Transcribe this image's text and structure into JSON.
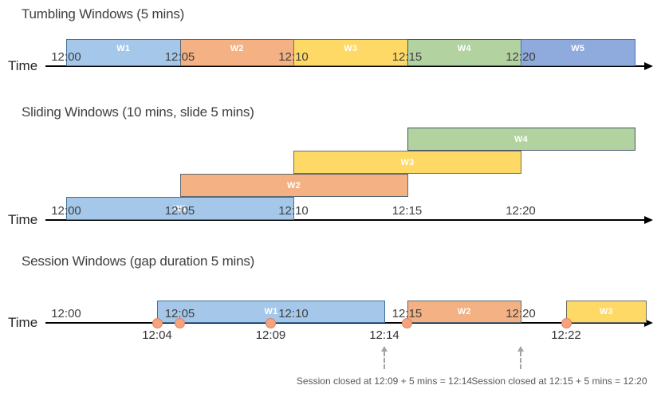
{
  "colors": {
    "blue": {
      "fill": "#A5C8EA",
      "border": "#41719C"
    },
    "orange": {
      "fill": "#F4B183",
      "border": "#5B6770"
    },
    "yellow": {
      "fill": "#FFD966",
      "border": "#6E7060"
    },
    "green": {
      "fill": "#B2D3A0",
      "border": "#44546A"
    },
    "periwinkle": {
      "fill": "#8FAADC",
      "border": "#4472C4"
    },
    "axis": "#000000",
    "dot_fill": "#F4A57F",
    "dot_border": "#E0825C",
    "tick_text": "#3F3F3F",
    "annotation_text": "#595959",
    "annotation_arrow": "#A3A3A3"
  },
  "sections": [
    {
      "title": "Tumbling Windows (5 mins)",
      "time_label": "Time",
      "ticks": [
        {
          "label": "12:00",
          "min": 0
        },
        {
          "label": "12:05",
          "min": 5
        },
        {
          "label": "12:10",
          "min": 10
        },
        {
          "label": "12:15",
          "min": 15
        },
        {
          "label": "12:20",
          "min": 20
        }
      ],
      "windows": [
        {
          "label": "W1",
          "start_min": 0,
          "end_min": 5,
          "color": "blue"
        },
        {
          "label": "W2",
          "start_min": 5,
          "end_min": 10,
          "color": "orange"
        },
        {
          "label": "W3",
          "start_min": 10,
          "end_min": 15,
          "color": "yellow"
        },
        {
          "label": "W4",
          "start_min": 15,
          "end_min": 20,
          "color": "green"
        },
        {
          "label": "W5",
          "start_min": 20,
          "end_min": 25,
          "color": "periwinkle"
        }
      ]
    },
    {
      "title": "Sliding Windows (10 mins, slide 5 mins)",
      "time_label": "Time",
      "ticks": [
        {
          "label": "12:00",
          "min": 0
        },
        {
          "label": "12:05",
          "min": 5
        },
        {
          "label": "12:10",
          "min": 10
        },
        {
          "label": "12:15",
          "min": 15
        },
        {
          "label": "12:20",
          "min": 20
        }
      ],
      "windows": [
        {
          "label": "W1",
          "start_min": 0,
          "end_min": 10,
          "color": "blue",
          "row": 0
        },
        {
          "label": "W2",
          "start_min": 5,
          "end_min": 15,
          "color": "orange",
          "row": 1
        },
        {
          "label": "W3",
          "start_min": 10,
          "end_min": 20,
          "color": "yellow",
          "row": 2
        },
        {
          "label": "W4",
          "start_min": 15,
          "end_min": 25,
          "color": "green",
          "row": 3
        }
      ]
    },
    {
      "title": "Session Windows (gap duration 5 mins)",
      "time_label": "Time",
      "ticks": [
        {
          "label": "12:00",
          "min": 0
        },
        {
          "label": "12:05",
          "min": 5
        },
        {
          "label": "12:10",
          "min": 10
        },
        {
          "label": "12:15",
          "min": 15
        },
        {
          "label": "12:20",
          "min": 20
        }
      ],
      "windows": [
        {
          "label": "W1",
          "start_min": 4,
          "end_min": 14,
          "color": "blue"
        },
        {
          "label": "W2",
          "start_min": 15,
          "end_min": 20,
          "color": "orange"
        },
        {
          "label": "W3",
          "start_min": 22,
          "end_min": 25.5,
          "color": "yellow"
        }
      ],
      "events": [
        {
          "min": 4
        },
        {
          "min": 5
        },
        {
          "min": 9
        },
        {
          "min": 15
        },
        {
          "min": 22
        }
      ],
      "event_labels": [
        {
          "label": "12:04",
          "min": 4
        },
        {
          "label": "12:09",
          "min": 9
        },
        {
          "label": "12:14",
          "min": 14
        },
        {
          "label": "12:22",
          "min": 22
        }
      ],
      "annotations": [
        {
          "text": "Session closed at 12:09 + 5 mins = 12:14",
          "min": 14
        },
        {
          "text": "Session closed at 12:15 + 5 mins = 12:20",
          "min": 20
        }
      ]
    }
  ]
}
